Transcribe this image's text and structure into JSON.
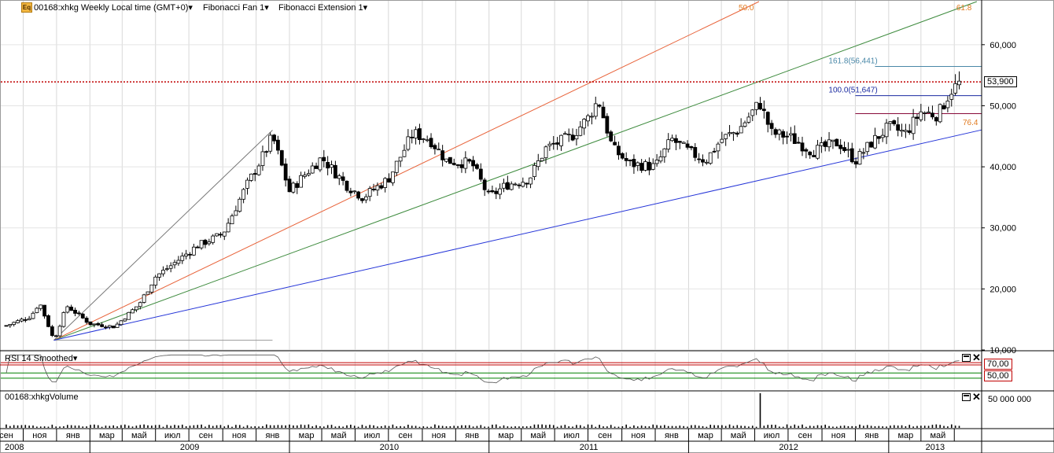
{
  "header": {
    "icon": "equity-icon",
    "icon_text": "Eq",
    "symbol_label": "00168:xhkg Weekly Local time (GMT+0)",
    "fan_label": "Fibonacci Fan 1",
    "extension_label": "Fibonacci Extension 1"
  },
  "rsi_panel": {
    "title": "RSI 14 Smoothed",
    "level_high": "70,00",
    "level_low": "50,00"
  },
  "volume_panel": {
    "title": "00168:xhkgVolume",
    "axis_label": "50 000 000"
  },
  "colors": {
    "up_candle": "#ffffff",
    "down_candle": "#000000",
    "fan_50": "#e8633a",
    "fan_61_8": "#3c8a3c",
    "fan_76_4": "#2434d8",
    "ext_161_8": "#4a88a8",
    "ext_100": "#1a2aa0",
    "ext_base": "#880a3a",
    "last_price": "#c00000",
    "rsi_bands": "#c00000"
  },
  "chart_data": {
    "type": "candlestick",
    "timeframe": "Weekly",
    "ylim": [
      10000,
      65000
    ],
    "y_ticks": [
      "10,000",
      "20,000",
      "30,000",
      "40,000",
      "50,000",
      "60,000"
    ],
    "last_price_label": "53,900",
    "x_month_labels": [
      "сен",
      "ноя",
      "янв",
      "мар",
      "май",
      "июл",
      "сен",
      "ноя",
      "янв",
      "мар",
      "май",
      "июл",
      "сен",
      "ноя",
      "янв",
      "мар",
      "май",
      "июл",
      "сен",
      "ноя",
      "янв",
      "мар",
      "май",
      "июл",
      "сен",
      "ноя",
      "янв",
      "мар",
      "май"
    ],
    "x_year_labels": [
      "2008",
      "2009",
      "2010",
      "2011",
      "2012",
      "2013"
    ],
    "price_path": [
      [
        "2008-08-01",
        14000
      ],
      [
        "2008-09-15",
        15500
      ],
      [
        "2008-10-01",
        17800
      ],
      [
        "2008-10-27",
        11600
      ],
      [
        "2008-11-20",
        17200
      ],
      [
        "2009-01-01",
        14300
      ],
      [
        "2009-02-15",
        13800
      ],
      [
        "2009-04-01",
        17500
      ],
      [
        "2009-05-01",
        22000
      ],
      [
        "2009-06-01",
        24000
      ],
      [
        "2009-07-15",
        27000
      ],
      [
        "2009-09-01",
        29000
      ],
      [
        "2009-10-15",
        37000
      ],
      [
        "2009-11-15",
        42000
      ],
      [
        "2009-12-01",
        45000
      ],
      [
        "2010-01-01",
        36000
      ],
      [
        "2010-02-01",
        39000
      ],
      [
        "2010-03-01",
        41500
      ],
      [
        "2010-04-15",
        37000
      ],
      [
        "2010-05-15",
        35000
      ],
      [
        "2010-07-01",
        38000
      ],
      [
        "2010-08-15",
        45500
      ],
      [
        "2010-09-15",
        44500
      ],
      [
        "2010-10-15",
        41000
      ],
      [
        "2010-12-01",
        40500
      ],
      [
        "2011-01-01",
        35000
      ],
      [
        "2011-02-01",
        37000
      ],
      [
        "2011-03-15",
        38000
      ],
      [
        "2011-04-15",
        43000
      ],
      [
        "2011-06-01",
        45000
      ],
      [
        "2011-07-01",
        48000
      ],
      [
        "2011-07-20",
        51000
      ],
      [
        "2011-08-15",
        43000
      ],
      [
        "2011-09-15",
        40500
      ],
      [
        "2011-11-01",
        40000
      ],
      [
        "2011-12-01",
        44500
      ],
      [
        "2012-01-01",
        42500
      ],
      [
        "2012-02-01",
        41000
      ],
      [
        "2012-03-01",
        44500
      ],
      [
        "2012-04-01",
        46000
      ],
      [
        "2012-05-10",
        50500
      ],
      [
        "2012-06-01",
        45500
      ],
      [
        "2012-07-01",
        45000
      ],
      [
        "2012-08-15",
        42500
      ],
      [
        "2012-10-01",
        44000
      ],
      [
        "2012-11-01",
        41000
      ],
      [
        "2012-12-01",
        44000
      ],
      [
        "2013-01-01",
        46500
      ],
      [
        "2013-02-01",
        45500
      ],
      [
        "2013-03-01",
        49000
      ],
      [
        "2013-04-01",
        48500
      ],
      [
        "2013-04-25",
        52500
      ],
      [
        "2013-05-13",
        53900
      ]
    ],
    "fibonacci_fan": {
      "anchor": [
        "2008-10-27",
        11600
      ],
      "end": [
        "2009-12-01",
        46000
      ],
      "levels": [
        {
          "label": "50.0",
          "value": 50.0
        },
        {
          "label": "61.8",
          "value": 61.8
        },
        {
          "label": "76.4",
          "value": 76.4
        }
      ]
    },
    "fibonacci_extension": {
      "start": "2012-11-01",
      "base": 48700,
      "levels": [
        {
          "label": "161.8(56,441)",
          "value": 56441
        },
        {
          "label": "100.0(51,647)",
          "value": 51647
        }
      ]
    },
    "volume_spike": [
      "2012-05-10",
      50000000
    ],
    "rsi": {
      "levels": [
        70,
        50
      ]
    }
  }
}
